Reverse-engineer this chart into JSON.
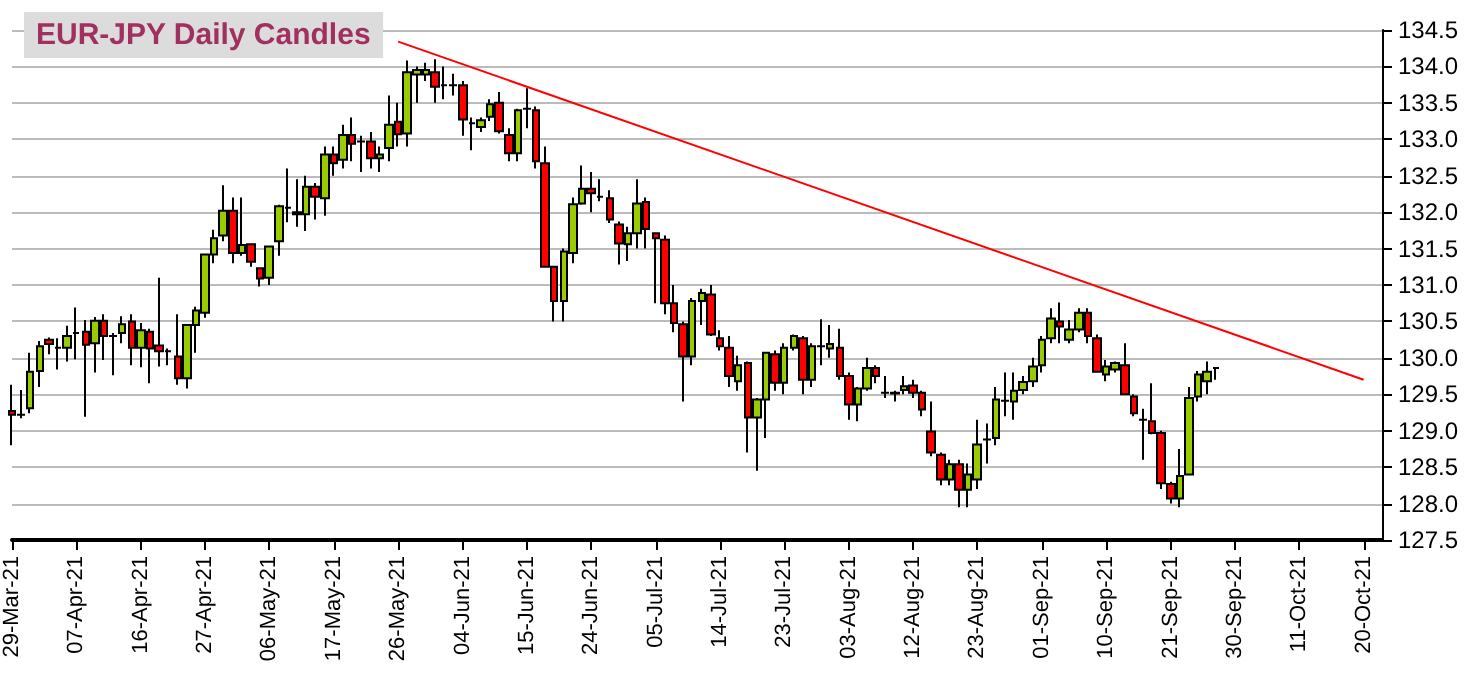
{
  "chart_data": {
    "type": "candlestick",
    "title": "EUR-JPY Daily Candles",
    "categories": [
      "29-Mar-21",
      null,
      null,
      null,
      null,
      null,
      null,
      "07-Apr-21",
      null,
      null,
      null,
      null,
      null,
      null,
      "16-Apr-21",
      null,
      null,
      null,
      null,
      null,
      null,
      "27-Apr-21",
      null,
      null,
      null,
      null,
      null,
      null,
      "06-May-21",
      null,
      null,
      null,
      null,
      null,
      null,
      "17-May-21",
      null,
      null,
      null,
      null,
      null,
      null,
      "26-May-21",
      null,
      null,
      null,
      null,
      null,
      null,
      "04-Jun-21",
      null,
      null,
      null,
      null,
      null,
      null,
      "15-Jun-21",
      null,
      null,
      null,
      null,
      null,
      null,
      "24-Jun-21",
      null,
      null,
      null,
      null,
      null,
      null,
      "05-Jul-21",
      null,
      null,
      null,
      null,
      null,
      null,
      "14-Jul-21",
      null,
      null,
      null,
      null,
      null,
      null,
      "23-Jul-21",
      null,
      null,
      null,
      null,
      null,
      null,
      "03-Aug-21",
      null,
      null,
      null,
      null,
      null,
      null,
      "12-Aug-21",
      null,
      null,
      null,
      null,
      null,
      null,
      "23-Aug-21",
      null,
      null,
      null,
      null,
      null,
      null,
      "01-Sep-21",
      null,
      null,
      null,
      null,
      null,
      null,
      "10-Sep-21",
      null,
      null,
      null,
      null,
      null,
      null,
      "21-Sep-21",
      null,
      null,
      null,
      null,
      null,
      null,
      "30-Sep-21",
      null,
      null,
      null,
      null,
      null,
      null,
      "11-Oct-21",
      null,
      null,
      null,
      null,
      null,
      null,
      "20-Oct-21",
      null,
      null
    ],
    "ylim": [
      127.5,
      134.5
    ],
    "yticks": [
      {
        "value": 127.5,
        "label": "127.5"
      },
      {
        "value": 128,
        "label": "128.0"
      },
      {
        "value": 128.5,
        "label": "128.5"
      },
      {
        "value": 129,
        "label": "129.0"
      },
      {
        "value": 129.5,
        "label": "129.5"
      },
      {
        "value": 130,
        "label": "130.0"
      },
      {
        "value": 130.5,
        "label": "130.5"
      },
      {
        "value": 131,
        "label": "131.0"
      },
      {
        "value": 131.5,
        "label": "131.5"
      },
      {
        "value": 132,
        "label": "132.0"
      },
      {
        "value": 132.5,
        "label": "132.5"
      },
      {
        "value": 133,
        "label": "133.0"
      },
      {
        "value": 133.5,
        "label": "133.5"
      },
      {
        "value": 134,
        "label": "134.0"
      },
      {
        "value": 134.5,
        "label": "134.5"
      }
    ],
    "grid": "y",
    "series": [
      {
        "type": "candlestick",
        "ohlc": [
          [
            129.27,
            129.63,
            128.8,
            129.22
          ],
          [
            129.22,
            129.56,
            129.17,
            129.22
          ],
          [
            129.31,
            130.07,
            129.24,
            129.81
          ],
          [
            129.82,
            130.23,
            129.6,
            130.16
          ],
          [
            130.25,
            130.28,
            130.05,
            130.19
          ],
          [
            130.14,
            130.27,
            129.84,
            130.14
          ],
          [
            130.14,
            130.44,
            129.95,
            130.3
          ],
          [
            130.34,
            130.69,
            129.98,
            130.34
          ],
          [
            130.36,
            130.52,
            129.19,
            130.18
          ],
          [
            130.2,
            130.56,
            129.8,
            130.51
          ],
          [
            130.51,
            130.6,
            129.97,
            130.3
          ],
          [
            130.3,
            130.34,
            129.76,
            130.3
          ],
          [
            130.34,
            130.57,
            130.2,
            130.46
          ],
          [
            130.5,
            130.6,
            129.9,
            130.14
          ],
          [
            130.14,
            130.48,
            129.87,
            130.38
          ],
          [
            130.36,
            130.4,
            129.65,
            130.13
          ],
          [
            130.17,
            131.1,
            129.88,
            130.09
          ],
          [
            130.09,
            130.13,
            129.9,
            130.09
          ],
          [
            130.02,
            130.6,
            129.63,
            129.72
          ],
          [
            129.72,
            130.45,
            129.58,
            130.45
          ],
          [
            130.45,
            130.7,
            130.07,
            130.65
          ],
          [
            130.62,
            131.42,
            130.55,
            131.42
          ],
          [
            131.42,
            131.76,
            131.3,
            131.64
          ],
          [
            131.68,
            132.37,
            131.6,
            132.02
          ],
          [
            132.02,
            132.2,
            131.3,
            131.44
          ],
          [
            131.44,
            132.2,
            131.4,
            131.55
          ],
          [
            131.56,
            131.56,
            131.25,
            131.32
          ],
          [
            131.23,
            131.23,
            130.98,
            131.09
          ],
          [
            131.1,
            131.53,
            131.0,
            131.53
          ],
          [
            131.6,
            132.1,
            131.4,
            132.08
          ],
          [
            132.06,
            132.6,
            131.86,
            132.06
          ],
          [
            132.0,
            132.45,
            131.8,
            131.97
          ],
          [
            131.97,
            132.5,
            131.74,
            132.35
          ],
          [
            132.35,
            132.4,
            131.9,
            132.21
          ],
          [
            132.19,
            132.9,
            131.95,
            132.79
          ],
          [
            132.79,
            132.9,
            132.5,
            132.67
          ],
          [
            132.72,
            133.2,
            132.6,
            133.06
          ],
          [
            133.06,
            133.3,
            132.7,
            132.94
          ],
          [
            132.97,
            133.05,
            132.55,
            132.97
          ],
          [
            132.97,
            133.1,
            132.6,
            132.74
          ],
          [
            132.74,
            132.9,
            132.55,
            132.79
          ],
          [
            132.88,
            133.6,
            132.7,
            133.2
          ],
          [
            133.24,
            133.5,
            132.9,
            133.07
          ],
          [
            133.08,
            134.08,
            132.9,
            133.92
          ],
          [
            133.89,
            134.0,
            133.5,
            133.95
          ],
          [
            133.89,
            134.05,
            133.8,
            133.95
          ],
          [
            133.92,
            134.1,
            133.5,
            133.72
          ],
          [
            133.74,
            134.0,
            133.55,
            133.74
          ],
          [
            133.74,
            133.9,
            133.6,
            133.74
          ],
          [
            133.74,
            133.8,
            133.05,
            133.27
          ],
          [
            133.22,
            133.3,
            132.85,
            133.22
          ],
          [
            133.17,
            133.3,
            133.1,
            133.26
          ],
          [
            133.31,
            133.55,
            133.25,
            133.48
          ],
          [
            133.5,
            133.65,
            133.08,
            133.11
          ],
          [
            133.06,
            133.15,
            132.7,
            132.81
          ],
          [
            132.81,
            133.42,
            132.7,
            133.4
          ],
          [
            133.42,
            133.7,
            133.15,
            133.42
          ],
          [
            133.4,
            133.45,
            132.6,
            132.7
          ],
          [
            132.67,
            132.9,
            131.25,
            131.25
          ],
          [
            131.25,
            131.25,
            130.5,
            130.78
          ],
          [
            130.78,
            131.5,
            130.5,
            131.46
          ],
          [
            131.44,
            132.2,
            131.3,
            132.11
          ],
          [
            132.12,
            132.64,
            132.1,
            132.32
          ],
          [
            132.32,
            132.55,
            132.0,
            132.26
          ],
          [
            132.21,
            132.45,
            132.15,
            132.21
          ],
          [
            132.19,
            132.3,
            131.85,
            131.9
          ],
          [
            131.83,
            131.87,
            131.28,
            131.57
          ],
          [
            131.56,
            131.8,
            131.33,
            131.71
          ],
          [
            131.71,
            132.45,
            131.5,
            132.12
          ],
          [
            132.14,
            132.2,
            131.5,
            131.77
          ],
          [
            131.71,
            131.72,
            130.75,
            131.64
          ],
          [
            131.62,
            131.68,
            130.6,
            130.75
          ],
          [
            130.75,
            131.0,
            130.35,
            130.48
          ],
          [
            130.46,
            130.5,
            129.4,
            130.02
          ],
          [
            130.02,
            130.82,
            129.9,
            130.78
          ],
          [
            130.78,
            130.95,
            130.45,
            130.89
          ],
          [
            130.87,
            131.0,
            130.3,
            130.32
          ],
          [
            130.27,
            130.38,
            130.1,
            130.16
          ],
          [
            130.14,
            130.3,
            129.6,
            129.75
          ],
          [
            129.68,
            130.03,
            129.55,
            129.9
          ],
          [
            129.93,
            129.95,
            128.7,
            129.18
          ],
          [
            129.18,
            129.45,
            128.45,
            129.43
          ],
          [
            129.43,
            130.07,
            128.9,
            130.07
          ],
          [
            130.05,
            130.1,
            129.55,
            129.66
          ],
          [
            129.66,
            130.2,
            129.5,
            130.14
          ],
          [
            130.14,
            130.32,
            130.1,
            130.3
          ],
          [
            130.27,
            130.3,
            129.5,
            129.7
          ],
          [
            129.7,
            130.2,
            129.6,
            130.16
          ],
          [
            130.16,
            130.53,
            129.9,
            130.16
          ],
          [
            130.13,
            130.45,
            130.0,
            130.19
          ],
          [
            130.14,
            130.4,
            129.7,
            129.75
          ],
          [
            129.75,
            129.8,
            129.15,
            129.36
          ],
          [
            129.36,
            129.6,
            129.13,
            129.58
          ],
          [
            129.58,
            130.0,
            129.55,
            129.86
          ],
          [
            129.86,
            129.9,
            129.65,
            129.75
          ],
          [
            129.52,
            129.75,
            129.45,
            129.52
          ],
          [
            129.52,
            129.55,
            129.4,
            129.51
          ],
          [
            129.56,
            129.75,
            129.5,
            129.61
          ],
          [
            129.62,
            129.7,
            129.45,
            129.52
          ],
          [
            129.52,
            129.55,
            129.2,
            129.29
          ],
          [
            128.99,
            129.4,
            128.65,
            128.7
          ],
          [
            128.67,
            128.7,
            128.25,
            128.33
          ],
          [
            128.33,
            128.6,
            128.25,
            128.54
          ],
          [
            128.54,
            128.6,
            127.95,
            128.19
          ],
          [
            128.19,
            128.55,
            127.95,
            128.4
          ],
          [
            128.33,
            129.15,
            128.2,
            128.81
          ],
          [
            128.88,
            129.1,
            128.55,
            128.88
          ],
          [
            128.9,
            129.6,
            128.8,
            129.43
          ],
          [
            129.41,
            129.8,
            129.2,
            129.41
          ],
          [
            129.4,
            129.8,
            129.15,
            129.55
          ],
          [
            129.56,
            129.75,
            129.5,
            129.67
          ],
          [
            129.68,
            130.0,
            129.6,
            129.88
          ],
          [
            129.9,
            130.3,
            129.8,
            130.25
          ],
          [
            130.27,
            130.68,
            130.2,
            130.54
          ],
          [
            130.5,
            130.76,
            130.2,
            130.43
          ],
          [
            130.25,
            130.52,
            130.2,
            130.39
          ],
          [
            130.39,
            130.68,
            130.35,
            130.62
          ],
          [
            130.62,
            130.68,
            130.2,
            130.3
          ],
          [
            130.27,
            130.32,
            129.8,
            129.81
          ],
          [
            129.77,
            129.97,
            129.68,
            129.88
          ],
          [
            129.84,
            129.95,
            129.8,
            129.93
          ],
          [
            129.9,
            130.2,
            129.5,
            129.5
          ],
          [
            129.47,
            129.5,
            129.2,
            129.24
          ],
          [
            129.15,
            129.3,
            128.6,
            129.15
          ],
          [
            129.13,
            129.65,
            128.95,
            128.97
          ],
          [
            128.97,
            129.0,
            128.2,
            128.28
          ],
          [
            128.27,
            128.3,
            128.0,
            128.07
          ],
          [
            128.07,
            128.75,
            127.95,
            128.38
          ],
          [
            128.4,
            129.6,
            128.4,
            129.45
          ],
          [
            129.47,
            129.82,
            129.4,
            129.77
          ],
          [
            129.68,
            129.95,
            129.5,
            129.81
          ],
          [
            129.86,
            129.87,
            129.7,
            129.86
          ],
          null,
          null,
          null,
          null,
          null,
          null,
          null,
          null,
          null,
          null,
          null,
          null,
          null,
          null,
          null,
          null,
          null,
          null
        ]
      },
      {
        "type": "line",
        "color": "#ff0000",
        "x": [
          "26-May-21",
          "20-Oct-21"
        ],
        "values": [
          134.34,
          129.7
        ]
      }
    ]
  }
}
